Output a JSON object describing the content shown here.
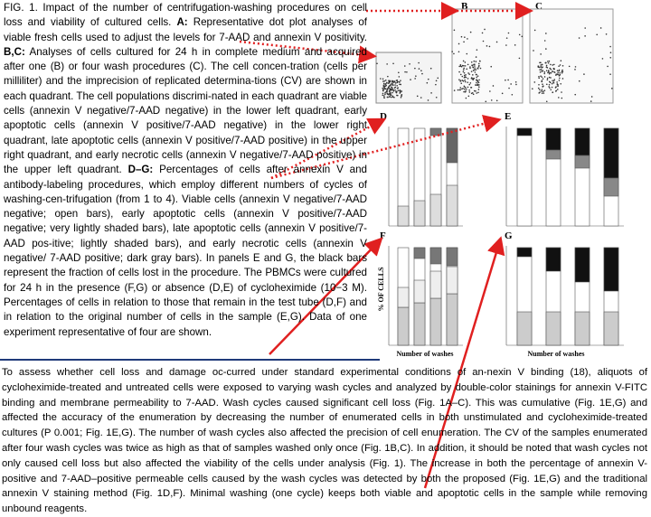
{
  "caption": [
    {
      "text": "FIG. 1. Impact of the number of centrifugation-washing procedures on cell loss and viability of cultured cells. ",
      "bold": false
    },
    {
      "text": "A:",
      "bold": true
    },
    {
      "text": " Representative dot plot analyses of viable fresh cells used to adjust the levels for 7-AAD and annexin V positivity. ",
      "bold": false
    },
    {
      "text": "B,C:",
      "bold": true
    },
    {
      "text": " Analyses of cells cultured for 24 h in complete medium and acquired after one (B) or four wash procedures (C). The cell concen-tration (cells per milliliter) and the imprecision of replicated determina-tions (CV) are shown in each quadrant. The cell populations discrimi-nated in each quadrant are viable cells (annexin V negative/7-AAD negative) in the lower left quadrant, early apoptotic cells (annexin V positive/7-AAD negative) in the lower right quadrant, late apoptotic cells (annexin V positive/7-AAD positive) in the upper right quadrant, and early necrotic cells (annexin V negative/7-AAD positive) in the upper left quadrant. ",
      "bold": false
    },
    {
      "text": "D–G:",
      "bold": true
    },
    {
      "text": " Percentages of cells after annexin V and antibody-labeling procedures, which employ different numbers of cycles of washing-cen-trifugation (from 1 to 4). Viable cells (annexin V negative/7-AAD negative; open bars), early apoptotic cells (annexin V positive/7-AAD negative; very lightly shaded bars), late apoptotic cells (annexin V positive/7-AAD pos-itive; lightly shaded bars), and early necrotic cells (annexin V negative/ 7-AAD positive; dark gray bars). In panels E and G, the black bars represent the fraction of cells lost in the procedure. The PBMCs were cultured for 24 h in the presence (F,G) or absence (D,E) of cycloheximide (10−3 M). Percentages of cells in relation to those that remain in the test tube (D,F) and in relation to the original number of cells in the sample (E,G). Data of one experiment representative of four are shown.",
      "bold": false
    }
  ],
  "figure": {
    "panel_labels": [
      "B",
      "C",
      "D",
      "E",
      "F",
      "G"
    ],
    "y_axis_label": "% OF CELLS",
    "x_axis_labels": [
      "Number of washes",
      "Number of washes"
    ]
  },
  "paragraph": "To assess whether cell loss and damage oc-curred under standard experimental conditions of an-nexin V binding (18), aliquots of cycloheximide-treated and untreated cells were exposed to varying wash cycles and analyzed by double-color stainings for annexin V-FITC binding and membrane permeability to 7-AAD. Wash cycles caused significant cell loss (Fig. 1A–C). This was cumulative (Fig. 1E,G) and affected the accuracy of the enumeration by decreasing the number of enumerated cells in both unstimulated and cycloheximide-treated cultures (P 0.001; Fig. 1E,G). The number of wash cycles also affected the precision of cell enumeration. The CV of the samples enumerated after four wash cycles was twice as high as that of samples washed only once (Fig. 1B,C). In addition, it should be noted that wash cycles not only caused cell loss but also affected the viability of the cells under analysis (Fig. 1). The increase in both the percentage of annexin V-positive and 7-AAD–positive permeable cells caused by the wash cycles was detected by both the proposed (Fig. 1E,G) and the traditional annexin V staining method (Fig. 1D,F). Minimal washing (one cycle) keeps both viable and apoptotic cells in the sample while removing unbound reagents."
}
